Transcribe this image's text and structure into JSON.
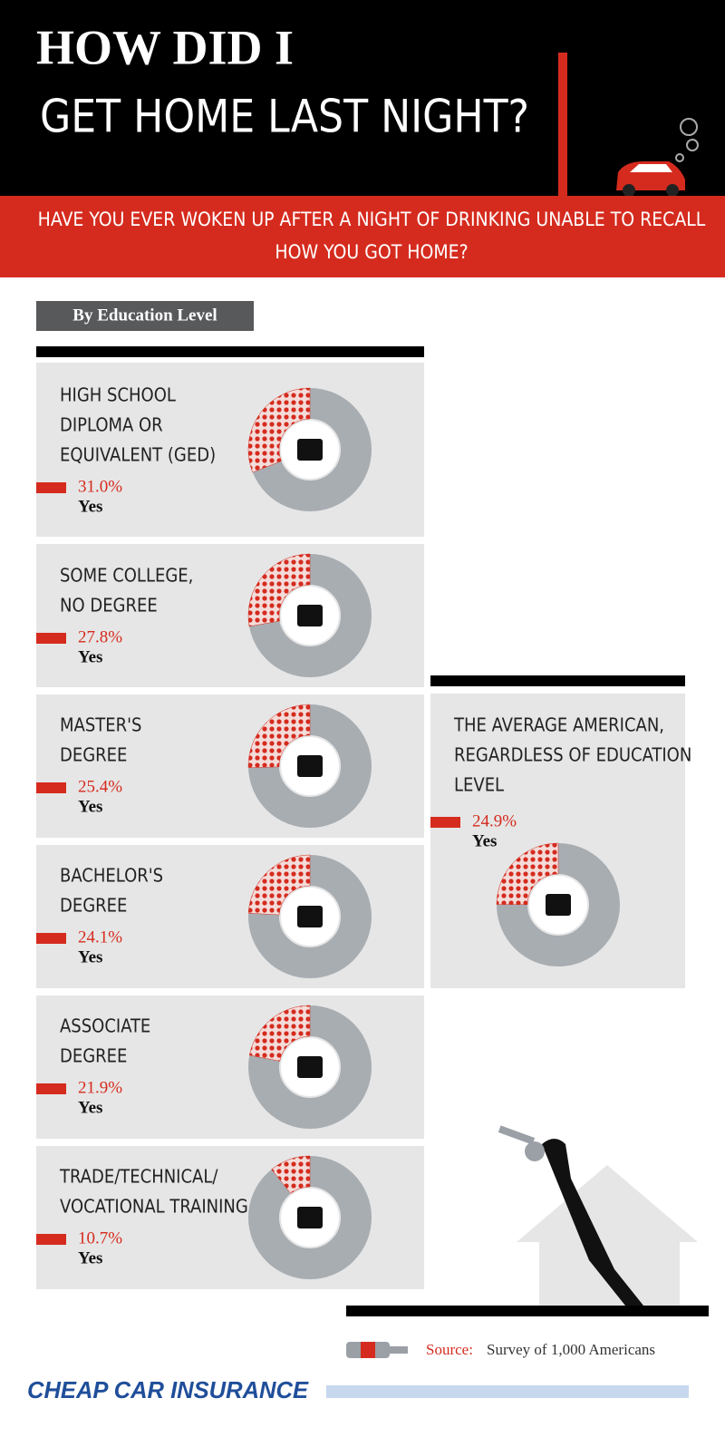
{
  "header": {
    "title_line1": "HOW DID I",
    "title_line2": "GET HOME LAST NIGHT?"
  },
  "question_lines": [
    "HAVE YOU EVER WOKEN UP AFTER A NIGHT OF DRINKING UNABLE TO RECALL",
    "HOW YOU GOT HOME?"
  ],
  "section_label": "By Education Level",
  "chart_data": [
    {
      "type": "donut",
      "title_lines": [
        "HIGH SCHOOL",
        "DIPLOMA OR",
        "EQUIVALENT (GED)"
      ],
      "values": [
        31.0
      ],
      "value_labels": [
        "31.0%"
      ],
      "answer": "Yes",
      "color": "#d52b1e"
    },
    {
      "type": "donut",
      "title_lines": [
        "SOME COLLEGE,",
        "NO DEGREE"
      ],
      "values": [
        27.8
      ],
      "value_labels": [
        "27.8%"
      ],
      "answer": "Yes",
      "color": "#d52b1e"
    },
    {
      "type": "donut",
      "title_lines": [
        "MASTER'S",
        "DEGREE"
      ],
      "values": [
        25.4
      ],
      "value_labels": [
        "25.4%"
      ],
      "answer": "Yes",
      "color": "#d52b1e"
    },
    {
      "type": "donut",
      "title_lines": [
        "BACHELOR'S",
        "DEGREE"
      ],
      "values": [
        24.1
      ],
      "value_labels": [
        "24.1%"
      ],
      "answer": "Yes",
      "color": "#d52b1e"
    },
    {
      "type": "donut",
      "title_lines": [
        "ASSOCIATE",
        "DEGREE"
      ],
      "values": [
        21.9
      ],
      "value_labels": [
        "21.9%"
      ],
      "answer": "Yes",
      "color": "#d52b1e"
    },
    {
      "type": "donut",
      "title_lines": [
        "TRADE/TECHNICAL/",
        "VOCATIONAL TRAINING"
      ],
      "values": [
        10.7
      ],
      "value_labels": [
        "10.7%"
      ],
      "answer": "Yes",
      "color": "#d52b1e"
    },
    {
      "type": "donut",
      "title_lines": [
        "THE AVERAGE AMERICAN,",
        "REGARDLESS OF EDUCATION",
        "LEVEL"
      ],
      "values": [
        24.9
      ],
      "value_labels": [
        "24.9%"
      ],
      "answer": "Yes",
      "color": "#d52b1e"
    }
  ],
  "source": {
    "label": "Source:",
    "text": "Survey of 1,000 Americans"
  },
  "brand": "CHEAP CAR INSURANCE"
}
